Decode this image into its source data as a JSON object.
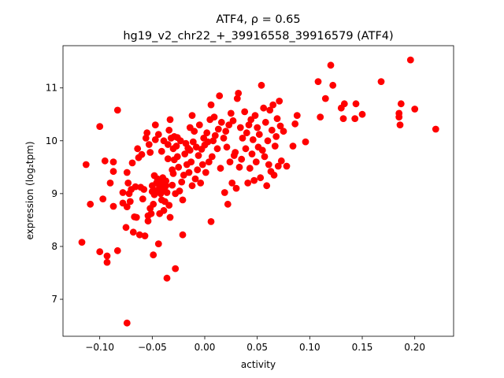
{
  "chart_data": {
    "type": "scatter",
    "title_line1": "ATF4, ρ = 0.65",
    "title_line2": "hg19_v2_chr22_+_39916558_39916579 (ATF4)",
    "xlabel": "activity",
    "ylabel": "expression (log₂tpm)",
    "xlim": [
      -0.135,
      0.237
    ],
    "ylim": [
      6.3,
      11.8
    ],
    "xticks": [
      -0.1,
      -0.05,
      0.0,
      0.05,
      0.1,
      0.15,
      0.2
    ],
    "xtick_labels": [
      "−0.10",
      "−0.05",
      "0.00",
      "0.05",
      "0.10",
      "0.15",
      "0.20"
    ],
    "yticks": [
      7,
      8,
      9,
      10,
      11
    ],
    "ytick_labels": [
      "7",
      "8",
      "9",
      "10",
      "11"
    ],
    "grid": false,
    "marker_color": "#ff0000",
    "points": [
      [
        -0.117,
        8.08
      ],
      [
        -0.113,
        9.55
      ],
      [
        -0.109,
        8.8
      ],
      [
        -0.1,
        10.27
      ],
      [
        -0.1,
        7.9
      ],
      [
        -0.097,
        8.9
      ],
      [
        -0.095,
        9.62
      ],
      [
        -0.093,
        7.82
      ],
      [
        -0.093,
        7.7
      ],
      [
        -0.09,
        9.2
      ],
      [
        -0.087,
        9.6
      ],
      [
        -0.087,
        8.76
      ],
      [
        -0.087,
        9.42
      ],
      [
        -0.083,
        10.58
      ],
      [
        -0.083,
        7.92
      ],
      [
        -0.078,
        8.82
      ],
      [
        -0.078,
        9.02
      ],
      [
        -0.075,
        8.36
      ],
      [
        -0.074,
        6.55
      ],
      [
        -0.074,
        9.4
      ],
      [
        -0.074,
        8.75
      ],
      [
        -0.073,
        9.2
      ],
      [
        -0.072,
        9.0
      ],
      [
        -0.071,
        8.85
      ],
      [
        -0.07,
        9.08
      ],
      [
        -0.069,
        9.58
      ],
      [
        -0.068,
        8.27
      ],
      [
        -0.067,
        8.56
      ],
      [
        -0.066,
        9.13
      ],
      [
        -0.065,
        8.55
      ],
      [
        -0.064,
        9.85
      ],
      [
        -0.063,
        9.68
      ],
      [
        -0.062,
        8.22
      ],
      [
        -0.061,
        9.12
      ],
      [
        -0.06,
        9.74
      ],
      [
        -0.059,
        8.9
      ],
      [
        -0.058,
        9.08
      ],
      [
        -0.057,
        8.2
      ],
      [
        -0.056,
        10.05
      ],
      [
        -0.055,
        10.15
      ],
      [
        -0.054,
        8.58
      ],
      [
        -0.054,
        8.48
      ],
      [
        -0.053,
        9.93
      ],
      [
        -0.052,
        9.78
      ],
      [
        -0.052,
        8.72
      ],
      [
        -0.051,
        8.62
      ],
      [
        -0.05,
        9.04
      ],
      [
        -0.05,
        9.15
      ],
      [
        -0.049,
        7.84
      ],
      [
        -0.049,
        8.8
      ],
      [
        -0.048,
        8.98
      ],
      [
        -0.048,
        9.34
      ],
      [
        -0.047,
        10.3
      ],
      [
        -0.047,
        10.02
      ],
      [
        -0.046,
        9.06
      ],
      [
        -0.046,
        9.2
      ],
      [
        -0.045,
        9.28
      ],
      [
        -0.044,
        10.12
      ],
      [
        -0.044,
        8.05
      ],
      [
        -0.043,
        9.14
      ],
      [
        -0.043,
        8.62
      ],
      [
        -0.042,
        9.22
      ],
      [
        -0.042,
        9.0
      ],
      [
        -0.041,
        8.88
      ],
      [
        -0.041,
        9.8
      ],
      [
        -0.04,
        9.3
      ],
      [
        -0.04,
        9.07
      ],
      [
        -0.039,
        8.68
      ],
      [
        -0.039,
        10.0
      ],
      [
        -0.038,
        9.12
      ],
      [
        -0.038,
        8.85
      ],
      [
        -0.037,
        9.15
      ],
      [
        -0.037,
        9.24
      ],
      [
        -0.036,
        7.4
      ],
      [
        -0.036,
        9.02
      ],
      [
        -0.035,
        9.93
      ],
      [
        -0.035,
        9.66
      ],
      [
        -0.034,
        8.78
      ],
      [
        -0.034,
        10.2
      ],
      [
        -0.033,
        8.55
      ],
      [
        -0.033,
        10.4
      ],
      [
        -0.032,
        10.05
      ],
      [
        -0.031,
        9.45
      ],
      [
        -0.031,
        9.16
      ],
      [
        -0.03,
        9.85
      ],
      [
        -0.03,
        9.38
      ],
      [
        -0.029,
        9.64
      ],
      [
        -0.029,
        10.08
      ],
      [
        -0.028,
        7.58
      ],
      [
        -0.028,
        9.0
      ],
      [
        -0.027,
        9.9
      ],
      [
        -0.026,
        10.06
      ],
      [
        -0.026,
        9.7
      ],
      [
        -0.025,
        9.5
      ],
      [
        -0.024,
        9.05
      ],
      [
        -0.023,
        10.0
      ],
      [
        -0.022,
        9.22
      ],
      [
        -0.021,
        8.22
      ],
      [
        -0.021,
        8.88
      ],
      [
        -0.02,
        9.35
      ],
      [
        -0.019,
        9.75
      ],
      [
        -0.018,
        9.95
      ],
      [
        -0.017,
        9.55
      ],
      [
        -0.016,
        9.86
      ],
      [
        -0.015,
        9.4
      ],
      [
        -0.014,
        10.25
      ],
      [
        -0.014,
        9.82
      ],
      [
        -0.013,
        9.6
      ],
      [
        -0.012,
        9.15
      ],
      [
        -0.012,
        10.48
      ],
      [
        -0.011,
        9.98
      ],
      [
        -0.01,
        10.18
      ],
      [
        -0.009,
        9.28
      ],
      [
        -0.008,
        9.88
      ],
      [
        -0.007,
        9.45
      ],
      [
        -0.006,
        9.72
      ],
      [
        -0.005,
        10.3
      ],
      [
        -0.004,
        9.2
      ],
      [
        -0.003,
        9.84
      ],
      [
        -0.002,
        9.55
      ],
      [
        -0.001,
        10.05
      ],
      [
        0.0,
        9.92
      ],
      [
        0.001,
        9.4
      ],
      [
        0.002,
        10.15
      ],
      [
        0.003,
        9.98
      ],
      [
        0.004,
        9.6
      ],
      [
        0.005,
        10.4
      ],
      [
        0.006,
        10.68
      ],
      [
        0.006,
        8.47
      ],
      [
        0.007,
        9.7
      ],
      [
        0.008,
        10.0
      ],
      [
        0.009,
        10.45
      ],
      [
        0.01,
        10.1
      ],
      [
        0.012,
        9.85
      ],
      [
        0.013,
        10.22
      ],
      [
        0.014,
        10.85
      ],
      [
        0.015,
        9.48
      ],
      [
        0.016,
        10.35
      ],
      [
        0.018,
        10.05
      ],
      [
        0.019,
        9.02
      ],
      [
        0.02,
        10.18
      ],
      [
        0.021,
        9.88
      ],
      [
        0.022,
        8.8
      ],
      [
        0.023,
        10.3
      ],
      [
        0.024,
        9.6
      ],
      [
        0.025,
        10.52
      ],
      [
        0.026,
        9.2
      ],
      [
        0.027,
        10.38
      ],
      [
        0.028,
        9.72
      ],
      [
        0.029,
        9.78
      ],
      [
        0.03,
        9.1
      ],
      [
        0.031,
        10.8
      ],
      [
        0.032,
        10.9
      ],
      [
        0.033,
        9.5
      ],
      [
        0.034,
        10.25
      ],
      [
        0.035,
        9.65
      ],
      [
        0.036,
        10.05
      ],
      [
        0.038,
        10.55
      ],
      [
        0.039,
        9.85
      ],
      [
        0.04,
        10.15
      ],
      [
        0.041,
        9.2
      ],
      [
        0.042,
        10.3
      ],
      [
        0.043,
        9.48
      ],
      [
        0.044,
        10.4
      ],
      [
        0.045,
        9.75
      ],
      [
        0.046,
        10.02
      ],
      [
        0.047,
        9.25
      ],
      [
        0.048,
        10.48
      ],
      [
        0.049,
        9.6
      ],
      [
        0.05,
        10.25
      ],
      [
        0.051,
        9.88
      ],
      [
        0.052,
        10.12
      ],
      [
        0.053,
        9.3
      ],
      [
        0.054,
        11.05
      ],
      [
        0.055,
        9.82
      ],
      [
        0.056,
        10.62
      ],
      [
        0.057,
        9.7
      ],
      [
        0.058,
        10.35
      ],
      [
        0.059,
        9.15
      ],
      [
        0.06,
        10.0
      ],
      [
        0.061,
        9.55
      ],
      [
        0.062,
        10.58
      ],
      [
        0.063,
        9.42
      ],
      [
        0.064,
        10.2
      ],
      [
        0.065,
        10.68
      ],
      [
        0.066,
        9.35
      ],
      [
        0.067,
        9.9
      ],
      [
        0.068,
        10.08
      ],
      [
        0.069,
        10.42
      ],
      [
        0.07,
        9.52
      ],
      [
        0.071,
        10.75
      ],
      [
        0.072,
        10.28
      ],
      [
        0.073,
        9.62
      ],
      [
        0.075,
        10.18
      ],
      [
        0.078,
        9.52
      ],
      [
        0.084,
        9.9
      ],
      [
        0.086,
        10.32
      ],
      [
        0.088,
        10.48
      ],
      [
        0.096,
        9.98
      ],
      [
        0.108,
        11.12
      ],
      [
        0.11,
        10.45
      ],
      [
        0.115,
        10.8
      ],
      [
        0.12,
        11.43
      ],
      [
        0.122,
        11.05
      ],
      [
        0.13,
        10.62
      ],
      [
        0.132,
        10.42
      ],
      [
        0.133,
        10.7
      ],
      [
        0.143,
        10.42
      ],
      [
        0.144,
        10.7
      ],
      [
        0.15,
        10.5
      ],
      [
        0.168,
        11.12
      ],
      [
        0.185,
        10.52
      ],
      [
        0.185,
        10.45
      ],
      [
        0.186,
        10.3
      ],
      [
        0.187,
        10.7
      ],
      [
        0.196,
        11.53
      ],
      [
        0.2,
        10.6
      ],
      [
        0.22,
        10.22
      ]
    ]
  }
}
